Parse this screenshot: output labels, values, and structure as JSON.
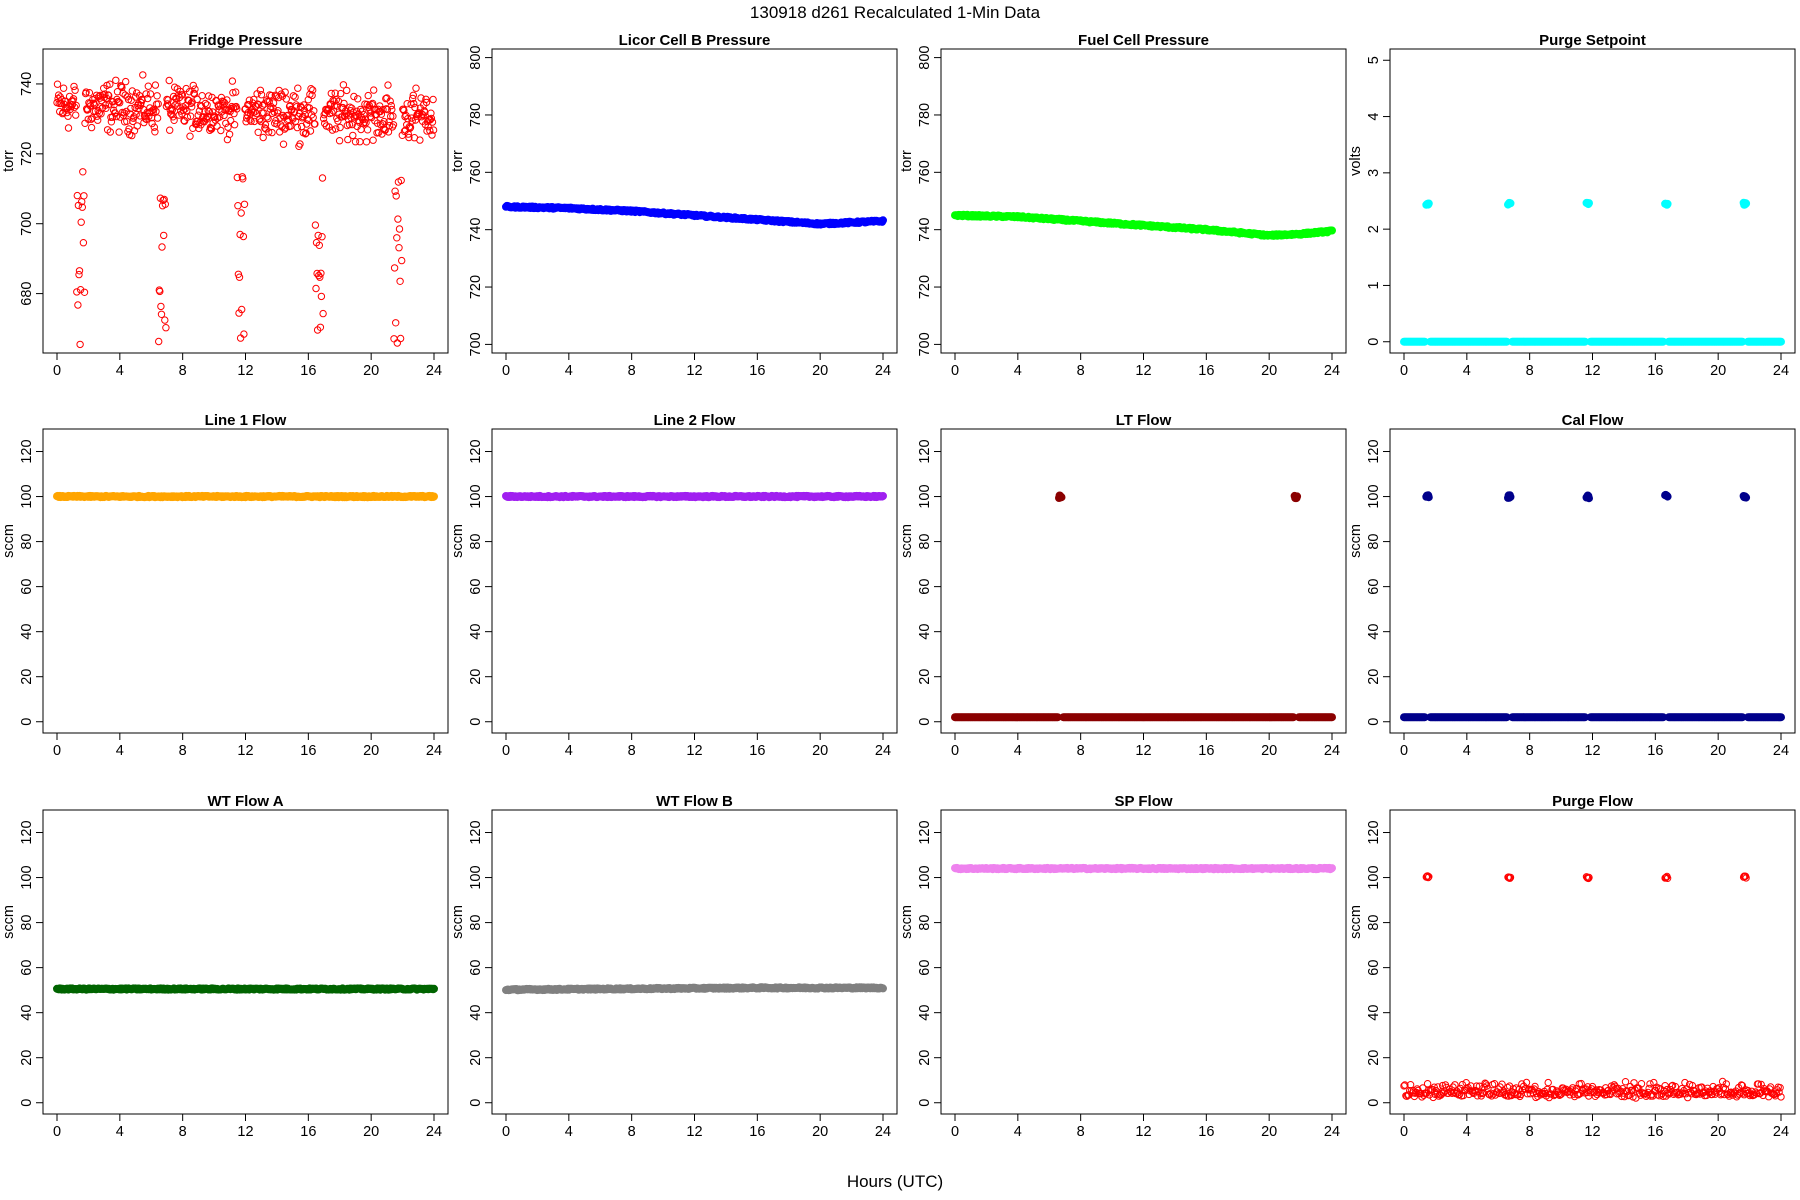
{
  "figure_title": "130918   d261   Recalculated 1-Min Data",
  "x_axis_label": "Hours (UTC)",
  "chart_data": [
    {
      "title": "Fridge Pressure",
      "type": "scatter",
      "ylabel": "torr",
      "color": "#ff0000",
      "marker": "open-circle",
      "xlim": [
        0,
        24
      ],
      "ylim": [
        663,
        750
      ],
      "xticks": [
        0,
        4,
        8,
        12,
        16,
        20,
        24
      ],
      "yticks": [
        680,
        700,
        720,
        740
      ],
      "pattern": "noisy ~733 torr (range 720-748) with dips to ~665-715 torr near hours 1.5, 6.7, 11.7, 16.7, 21.7"
    },
    {
      "title": "Licor Cell B Pressure",
      "type": "scatter",
      "ylabel": "torr",
      "color": "#0000ff",
      "marker": "filled-circle",
      "xlim": [
        0,
        24
      ],
      "ylim": [
        697,
        803
      ],
      "xticks": [
        0,
        4,
        8,
        12,
        16,
        20,
        24
      ],
      "yticks": [
        700,
        720,
        740,
        760,
        780,
        800
      ],
      "x": [
        0,
        4,
        8,
        12,
        16,
        20,
        22,
        24
      ],
      "y": [
        748,
        747.5,
        746.5,
        745,
        743.5,
        742,
        742.5,
        743
      ]
    },
    {
      "title": "Fuel Cell Pressure",
      "type": "scatter",
      "ylabel": "torr",
      "color": "#00ff00",
      "marker": "filled-circle",
      "xlim": [
        0,
        24
      ],
      "ylim": [
        697,
        803
      ],
      "xticks": [
        0,
        4,
        8,
        12,
        16,
        20,
        24
      ],
      "yticks": [
        700,
        720,
        740,
        760,
        780,
        800
      ],
      "x": [
        0,
        4,
        8,
        12,
        16,
        20,
        22,
        24
      ],
      "y": [
        745,
        744.5,
        743,
        741.5,
        740,
        738,
        738.5,
        739.5
      ]
    },
    {
      "title": "Purge Setpoint",
      "type": "scatter",
      "ylabel": "volts",
      "color": "#00ffff",
      "marker": "filled-circle",
      "xlim": [
        0,
        24
      ],
      "ylim": [
        -0.2,
        5.2
      ],
      "xticks": [
        0,
        4,
        8,
        12,
        16,
        20,
        24
      ],
      "yticks": [
        0,
        1,
        2,
        3,
        4,
        5
      ],
      "baseline": 0,
      "spike_value": 2.45,
      "spike_hours": [
        1.5,
        6.7,
        11.7,
        16.7,
        21.7
      ]
    },
    {
      "title": "Line 1 Flow",
      "type": "scatter",
      "ylabel": "sccm",
      "color": "#ffa500",
      "marker": "filled-circle",
      "xlim": [
        0,
        24
      ],
      "ylim": [
        -5,
        130
      ],
      "xticks": [
        0,
        4,
        8,
        12,
        16,
        20,
        24
      ],
      "yticks": [
        0,
        20,
        40,
        60,
        80,
        100,
        120
      ],
      "x": [
        0,
        24
      ],
      "y": [
        100,
        100
      ]
    },
    {
      "title": "Line 2 Flow",
      "type": "scatter",
      "ylabel": "sccm",
      "color": "#a020f0",
      "marker": "filled-circle",
      "xlim": [
        0,
        24
      ],
      "ylim": [
        -5,
        130
      ],
      "xticks": [
        0,
        4,
        8,
        12,
        16,
        20,
        24
      ],
      "yticks": [
        0,
        20,
        40,
        60,
        80,
        100,
        120
      ],
      "x": [
        0,
        24
      ],
      "y": [
        100,
        100
      ]
    },
    {
      "title": "LT Flow",
      "type": "scatter",
      "ylabel": "sccm",
      "color": "#8b0000",
      "marker": "filled-circle",
      "xlim": [
        0,
        24
      ],
      "ylim": [
        -5,
        130
      ],
      "xticks": [
        0,
        4,
        8,
        12,
        16,
        20,
        24
      ],
      "yticks": [
        0,
        20,
        40,
        60,
        80,
        100,
        120
      ],
      "baseline": 2,
      "spike_value": 100,
      "spike_hours": [
        6.7,
        21.7
      ]
    },
    {
      "title": "Cal Flow",
      "type": "scatter",
      "ylabel": "sccm",
      "color": "#00008b",
      "marker": "filled-circle",
      "xlim": [
        0,
        24
      ],
      "ylim": [
        -5,
        130
      ],
      "xticks": [
        0,
        4,
        8,
        12,
        16,
        20,
        24
      ],
      "yticks": [
        0,
        20,
        40,
        60,
        80,
        100,
        120
      ],
      "baseline": 2,
      "spike_value": 100,
      "spike_hours": [
        1.5,
        6.7,
        11.7,
        16.7,
        21.7
      ]
    },
    {
      "title": "WT Flow A",
      "type": "scatter",
      "ylabel": "sccm",
      "color": "#006400",
      "marker": "filled-circle",
      "xlim": [
        0,
        24
      ],
      "ylim": [
        -5,
        130
      ],
      "xticks": [
        0,
        4,
        8,
        12,
        16,
        20,
        24
      ],
      "yticks": [
        0,
        20,
        40,
        60,
        80,
        100,
        120
      ],
      "x": [
        0,
        24
      ],
      "y": [
        50.5,
        50.5
      ]
    },
    {
      "title": "WT Flow B",
      "type": "scatter",
      "ylabel": "sccm",
      "color": "#808080",
      "marker": "filled-circle",
      "xlim": [
        0,
        24
      ],
      "ylim": [
        -5,
        130
      ],
      "xticks": [
        0,
        4,
        8,
        12,
        16,
        20,
        24
      ],
      "yticks": [
        0,
        20,
        40,
        60,
        80,
        100,
        120
      ],
      "x": [
        0,
        8,
        16,
        24
      ],
      "y": [
        50.2,
        50.6,
        51,
        51
      ]
    },
    {
      "title": "SP Flow",
      "type": "scatter",
      "ylabel": "sccm",
      "color": "#ee82ee",
      "marker": "filled-circle",
      "xlim": [
        0,
        24
      ],
      "ylim": [
        -5,
        130
      ],
      "xticks": [
        0,
        4,
        8,
        12,
        16,
        20,
        24
      ],
      "yticks": [
        0,
        20,
        40,
        60,
        80,
        100,
        120
      ],
      "x": [
        0,
        24
      ],
      "y": [
        104,
        104
      ]
    },
    {
      "title": "Purge Flow",
      "type": "scatter",
      "ylabel": "sccm",
      "color": "#ff0000",
      "marker": "open-circle",
      "xlim": [
        0,
        24
      ],
      "ylim": [
        -5,
        130
      ],
      "xticks": [
        0,
        4,
        8,
        12,
        16,
        20,
        24
      ],
      "yticks": [
        0,
        20,
        40,
        60,
        80,
        100,
        120
      ],
      "baseline": 4.5,
      "noise": 4,
      "spike_value": 100,
      "spike_hours": [
        1.5,
        6.7,
        11.7,
        16.7,
        21.7
      ]
    }
  ]
}
